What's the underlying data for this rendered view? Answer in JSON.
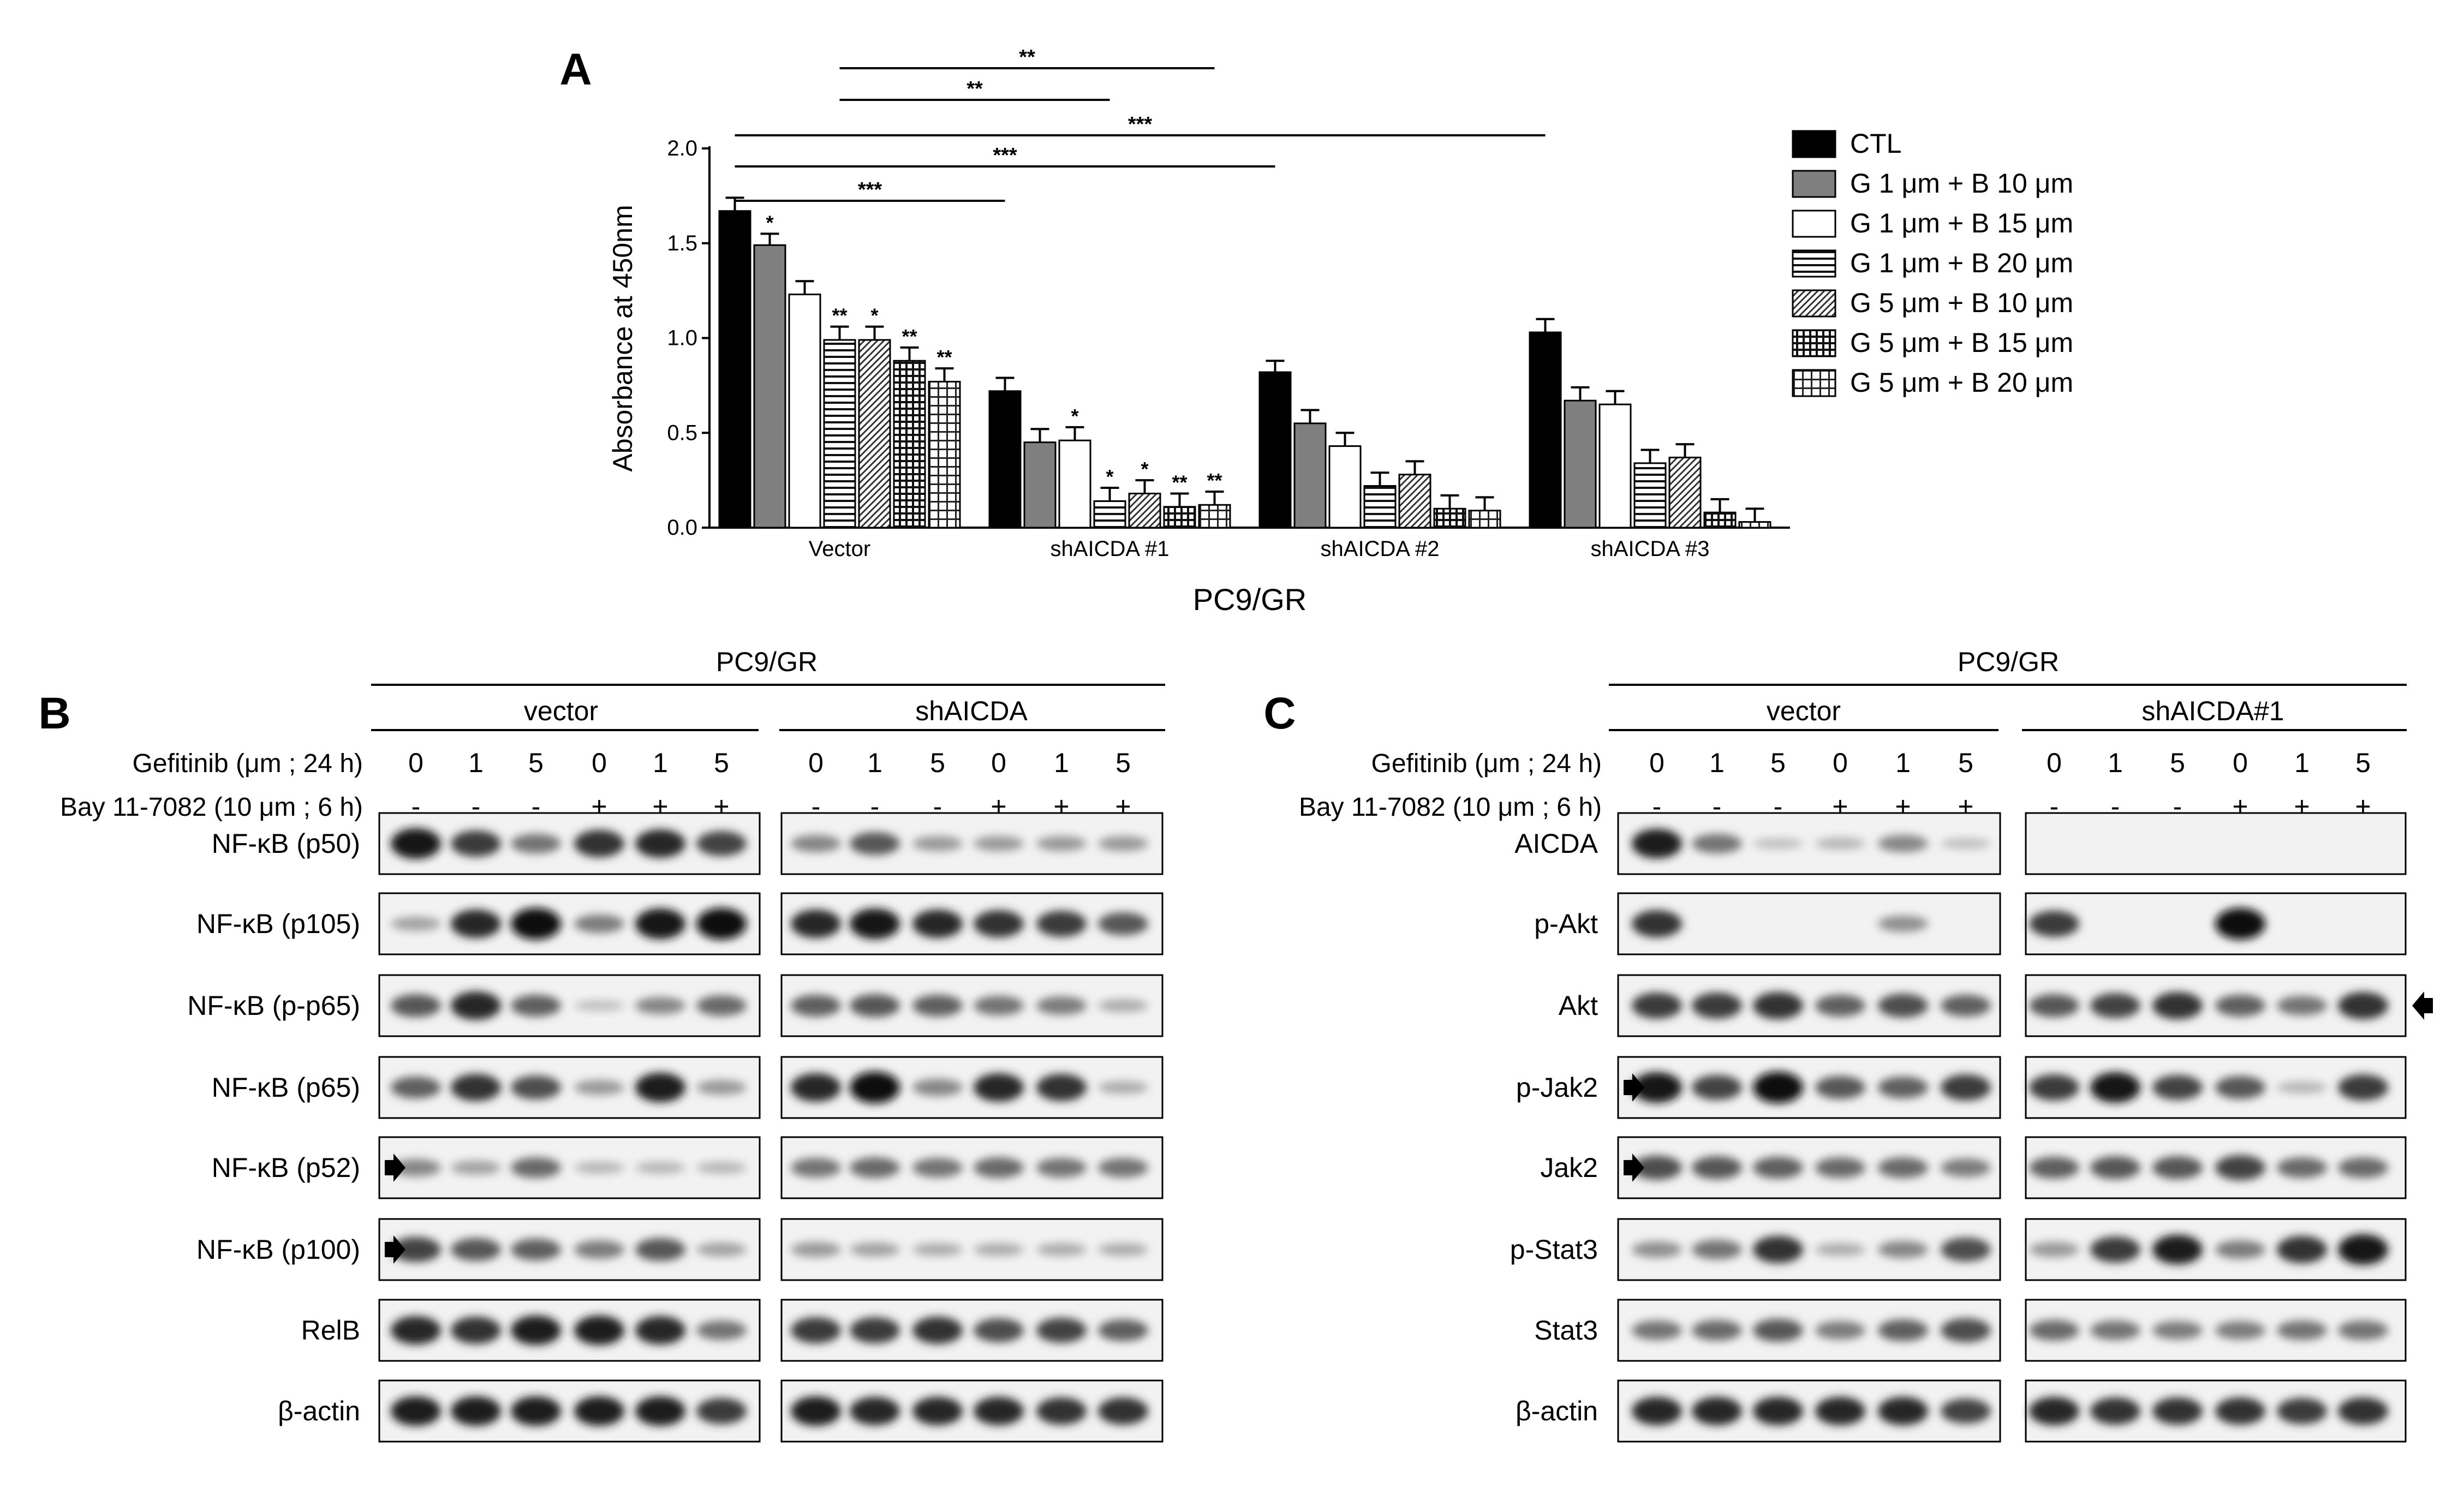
{
  "chart_data": {
    "type": "bar",
    "panel_label": "A",
    "xlabel": "PC9/GR",
    "ylabel": "Absorbance at 450nm",
    "ylim": [
      0,
      2.0
    ],
    "yticks": [
      "0.0",
      "0.5",
      "1.0",
      "1.5",
      "2.0"
    ],
    "categories": [
      "Vector",
      "shAICDA #1",
      "shAICDA #2",
      "shAICDA #3"
    ],
    "legend_position": "right",
    "series": [
      {
        "name": "CTL",
        "pattern": "solid-black",
        "values": [
          1.67,
          0.72,
          0.82,
          1.03
        ],
        "errors": [
          0.07,
          0.07,
          0.06,
          0.07
        ],
        "stars": [
          "",
          "",
          "",
          ""
        ]
      },
      {
        "name": "G 1 μm + B 10 μm",
        "pattern": "solid-gray",
        "values": [
          1.49,
          0.45,
          0.55,
          0.67
        ],
        "errors": [
          0.06,
          0.07,
          0.07,
          0.07
        ],
        "stars": [
          "*",
          "",
          "",
          ""
        ]
      },
      {
        "name": "G 1 μm + B 15 μm",
        "pattern": "white",
        "values": [
          1.23,
          0.46,
          0.43,
          0.65
        ],
        "errors": [
          0.07,
          0.07,
          0.07,
          0.07
        ],
        "stars": [
          "",
          "*",
          "",
          ""
        ]
      },
      {
        "name": "G 1 μm + B 20 μm",
        "pattern": "hlines",
        "values": [
          0.99,
          0.14,
          0.22,
          0.34
        ],
        "errors": [
          0.07,
          0.07,
          0.07,
          0.07
        ],
        "stars": [
          "**",
          "*",
          "",
          ""
        ]
      },
      {
        "name": "G 5 μm + B 10 μm",
        "pattern": "diag",
        "values": [
          0.99,
          0.18,
          0.28,
          0.37
        ],
        "errors": [
          0.07,
          0.07,
          0.07,
          0.07
        ],
        "stars": [
          "*",
          "*",
          "",
          ""
        ]
      },
      {
        "name": "G 5 μm + B 15 μm",
        "pattern": "dense-grid",
        "values": [
          0.88,
          0.11,
          0.1,
          0.08
        ],
        "errors": [
          0.07,
          0.07,
          0.07,
          0.07
        ],
        "stars": [
          "**",
          "**",
          "",
          ""
        ]
      },
      {
        "name": "G 5 μm + B 20 μm",
        "pattern": "grid",
        "values": [
          0.77,
          0.12,
          0.09,
          0.03
        ],
        "errors": [
          0.07,
          0.07,
          0.07,
          0.07
        ],
        "stars": [
          "**",
          "**",
          "",
          ""
        ]
      }
    ],
    "significance": [
      {
        "label": "**",
        "from": {
          "category": 0,
          "series": 3
        },
        "to": {
          "category": 1,
          "series": 6
        }
      },
      {
        "label": "**",
        "from": {
          "category": 0,
          "series": 3
        },
        "to": {
          "category": 1,
          "series": 3
        }
      },
      {
        "label": "***",
        "from": {
          "category": 0,
          "series": 0
        },
        "to": {
          "category": 3,
          "series": 0
        }
      },
      {
        "label": "***",
        "from": {
          "category": 0,
          "series": 0
        },
        "to": {
          "category": 2,
          "series": 0
        }
      },
      {
        "label": "***",
        "from": {
          "category": 0,
          "series": 0
        },
        "to": {
          "category": 1,
          "series": 0
        }
      }
    ]
  },
  "blot_panels": [
    {
      "label": "B",
      "title": "PC9/GR",
      "groups": [
        "vector",
        "shAICDA"
      ],
      "row1_label": "Gefitinib (μm ; 24 h)",
      "row1_values": [
        "0",
        "1",
        "5",
        "0",
        "1",
        "5"
      ],
      "row2_label": "Bay 11-7082 (10 μm ; 6 h)",
      "row2_values": [
        "-",
        "-",
        "-",
        "+",
        "+",
        "+"
      ],
      "rows": [
        {
          "label": "NF-κB (p50)",
          "marker": ""
        },
        {
          "label": "NF-κB (p105)",
          "marker": ""
        },
        {
          "label": "NF-κB (p-p65)",
          "marker": ""
        },
        {
          "label": "NF-κB (p65)",
          "marker": ""
        },
        {
          "label": "NF-κB (p52)",
          "marker": "left"
        },
        {
          "label": "NF-κB (p100)",
          "marker": "left"
        },
        {
          "label": "RelB",
          "marker": ""
        },
        {
          "label": "β-actin",
          "marker": ""
        }
      ]
    },
    {
      "label": "C",
      "title": "PC9/GR",
      "groups": [
        "vector",
        "shAICDA#1"
      ],
      "row1_label": "Gefitinib (μm ; 24 h)",
      "row1_values": [
        "0",
        "1",
        "5",
        "0",
        "1",
        "5"
      ],
      "row2_label": "Bay 11-7082 (10 μm ; 6 h)",
      "row2_values": [
        "-",
        "-",
        "-",
        "+",
        "+",
        "+"
      ],
      "rows": [
        {
          "label": "AICDA",
          "marker": ""
        },
        {
          "label": "p-Akt",
          "marker": ""
        },
        {
          "label": "Akt",
          "marker": "right"
        },
        {
          "label": "p-Jak2",
          "marker": "left"
        },
        {
          "label": "Jak2",
          "marker": "left"
        },
        {
          "label": "p-Stat3",
          "marker": ""
        },
        {
          "label": "Stat3",
          "marker": ""
        },
        {
          "label": "β-actin",
          "marker": ""
        }
      ]
    }
  ]
}
